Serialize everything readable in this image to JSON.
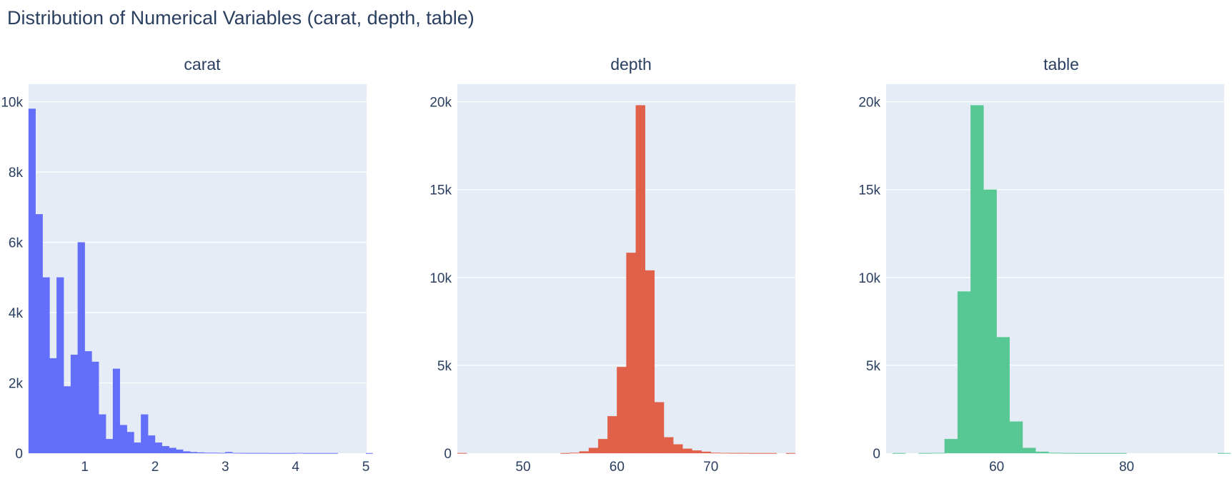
{
  "title": "Distribution of Numerical Variables (carat, depth, table)",
  "chart_data": [
    {
      "type": "bar",
      "subplot_title": "carat",
      "color": "#636efa",
      "bin_width": 0.1,
      "bin_starts": [
        0.2,
        0.3,
        0.4,
        0.5,
        0.6,
        0.7,
        0.8,
        0.9,
        1.0,
        1.1,
        1.2,
        1.3,
        1.4,
        1.5,
        1.6,
        1.7,
        1.8,
        1.9,
        2.0,
        2.1,
        2.2,
        2.3,
        2.4,
        2.5,
        2.6,
        2.7,
        2.8,
        2.9,
        3.0,
        3.1,
        3.2,
        3.3,
        3.4,
        3.5,
        3.6,
        3.7,
        3.8,
        3.9,
        4.0,
        4.1,
        4.2,
        4.3,
        4.4,
        4.5,
        4.6,
        4.7,
        4.8,
        4.9,
        5.0
      ],
      "values": [
        9800,
        6800,
        5000,
        2700,
        5000,
        1900,
        2800,
        6000,
        2900,
        2600,
        1100,
        400,
        2400,
        800,
        600,
        300,
        1100,
        500,
        300,
        200,
        150,
        100,
        50,
        30,
        20,
        10,
        10,
        5,
        30,
        5,
        3,
        2,
        2,
        2,
        1,
        1,
        1,
        1,
        5,
        1,
        1,
        1,
        1,
        1,
        0,
        0,
        0,
        0,
        1
      ],
      "xlim": [
        0.2,
        5.01
      ],
      "ylim": [
        0,
        10500
      ],
      "xticks": [
        1,
        2,
        3,
        4,
        5
      ],
      "xtick_labels": [
        "1",
        "2",
        "3",
        "4",
        "5"
      ],
      "yticks": [
        0,
        2000,
        4000,
        6000,
        8000,
        10000
      ],
      "ytick_labels": [
        "0",
        "2k",
        "4k",
        "6k",
        "8k",
        "10k"
      ],
      "grid": true
    },
    {
      "type": "bar",
      "subplot_title": "depth",
      "color": "#e0604a",
      "bin_width": 1,
      "bin_starts": [
        43,
        44,
        45,
        46,
        47,
        48,
        49,
        50,
        51,
        52,
        53,
        54,
        55,
        56,
        57,
        58,
        59,
        60,
        61,
        62,
        63,
        64,
        65,
        66,
        67,
        68,
        69,
        70,
        71,
        72,
        73,
        74,
        75,
        76,
        77,
        78
      ],
      "values": [
        3,
        0,
        0,
        0,
        0,
        0,
        0,
        0,
        0,
        0,
        0,
        2,
        20,
        100,
        300,
        800,
        2100,
        4900,
        11400,
        19800,
        10400,
        2900,
        900,
        500,
        250,
        150,
        80,
        20,
        10,
        5,
        5,
        2,
        1,
        1,
        0,
        1
      ],
      "xlim": [
        43,
        79
      ],
      "ylim": [
        0,
        21000
      ],
      "xticks": [
        50,
        60,
        70
      ],
      "xtick_labels": [
        "50",
        "60",
        "70"
      ],
      "yticks": [
        0,
        5000,
        10000,
        15000,
        20000
      ],
      "ytick_labels": [
        "0",
        "5k",
        "10k",
        "15k",
        "20k"
      ],
      "grid": true
    },
    {
      "type": "bar",
      "subplot_title": "table",
      "color": "#57c794",
      "bin_width": 2,
      "bin_starts": [
        44,
        46,
        48,
        50,
        52,
        54,
        56,
        58,
        60,
        62,
        64,
        66,
        68,
        70,
        72,
        74,
        76,
        78,
        80,
        82,
        84,
        86,
        88,
        90,
        92,
        94
      ],
      "values": [
        2,
        0,
        3,
        10,
        800,
        9200,
        19800,
        15000,
        6600,
        1800,
        300,
        80,
        20,
        5,
        2,
        1,
        1,
        1,
        0,
        0,
        0,
        0,
        0,
        0,
        0,
        1
      ],
      "xlim": [
        43,
        95
      ],
      "ylim": [
        0,
        21000
      ],
      "xticks": [
        60,
        80
      ],
      "xtick_labels": [
        "60",
        "80"
      ],
      "yticks": [
        0,
        5000,
        10000,
        15000,
        20000
      ],
      "ytick_labels": [
        "0",
        "5k",
        "10k",
        "15k",
        "20k"
      ],
      "grid": true
    }
  ]
}
